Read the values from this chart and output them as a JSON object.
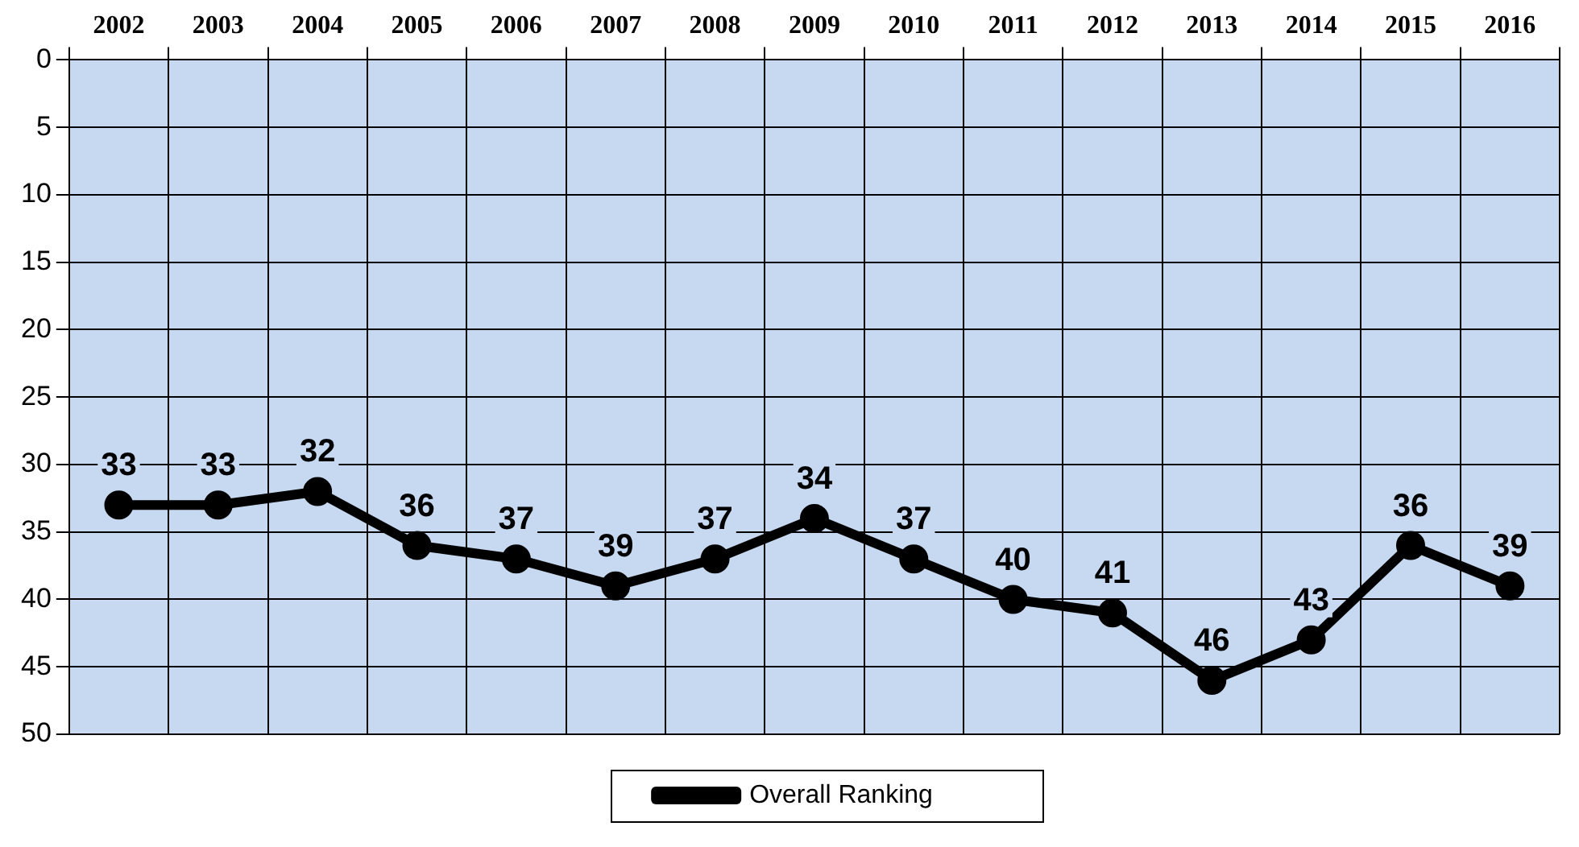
{
  "chart_data": {
    "type": "line",
    "categories": [
      "2002",
      "2003",
      "2004",
      "2005",
      "2006",
      "2007",
      "2008",
      "2009",
      "2010",
      "2011",
      "2012",
      "2013",
      "2014",
      "2015",
      "2016"
    ],
    "series": [
      {
        "name": "Overall Ranking",
        "color": "#000000",
        "values": [
          33,
          33,
          32,
          36,
          37,
          39,
          37,
          34,
          37,
          40,
          41,
          46,
          43,
          36,
          39
        ]
      }
    ],
    "ylim": [
      50,
      0
    ],
    "yticks": [
      0,
      5,
      10,
      15,
      20,
      25,
      30,
      35,
      40,
      45,
      50
    ],
    "grid": true,
    "legend": "bottom",
    "marker": "circle",
    "line_style": "solid",
    "data_labels": true
  }
}
